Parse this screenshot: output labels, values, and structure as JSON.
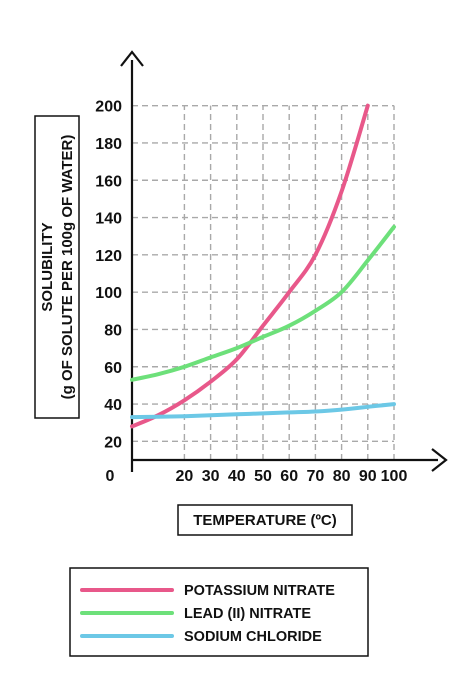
{
  "chart_data": {
    "type": "line",
    "xlabel": "TEMPERATURE (ºC)",
    "ylabel_line1": "SOLUBILITY",
    "ylabel_line2": "(g OF SOLUTE PER 100g OF WATER)",
    "origin_label": "0",
    "xlim": [
      0,
      100
    ],
    "ylim": [
      10,
      200
    ],
    "x_ticks": [
      20,
      30,
      40,
      50,
      60,
      70,
      80,
      90,
      100
    ],
    "y_ticks": [
      20,
      40,
      60,
      80,
      100,
      120,
      140,
      160,
      180,
      200
    ],
    "grid": true,
    "legend_position": "bottom",
    "series": [
      {
        "name": "POTASSIUM NITRATE",
        "color": "#e8588a",
        "x": [
          0,
          10,
          20,
          30,
          40,
          50,
          60,
          70,
          80,
          90
        ],
        "y": [
          28,
          34,
          42,
          52,
          64,
          82,
          100,
          120,
          154,
          200
        ]
      },
      {
        "name": "LEAD (II) NITRATE",
        "color": "#6de07a",
        "x": [
          0,
          10,
          20,
          30,
          40,
          50,
          60,
          70,
          80,
          90,
          100
        ],
        "y": [
          53,
          56,
          60,
          65,
          70,
          76,
          82,
          90,
          100,
          117,
          135
        ]
      },
      {
        "name": "SODIUM CHLORIDE",
        "color": "#6cc8e6",
        "x": [
          0,
          10,
          20,
          30,
          40,
          50,
          60,
          70,
          80,
          90,
          100
        ],
        "y": [
          33,
          33.2,
          33.5,
          34,
          34.5,
          35,
          35.5,
          36,
          37,
          38.5,
          40
        ]
      }
    ]
  }
}
